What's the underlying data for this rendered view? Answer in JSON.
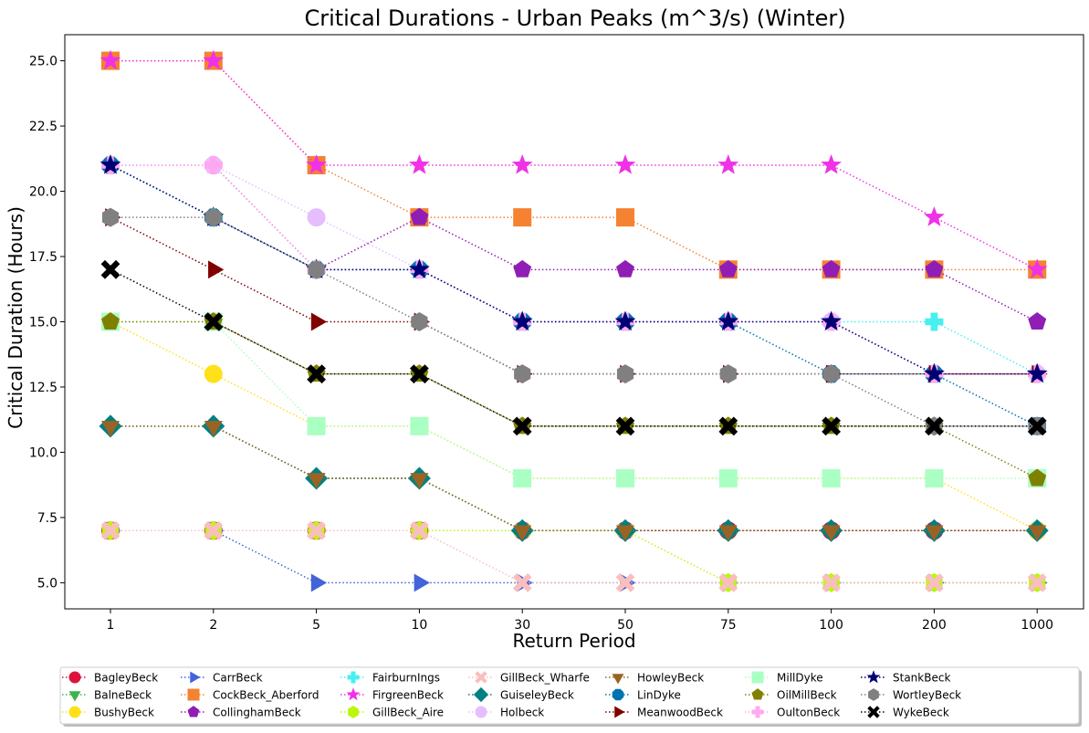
{
  "chart_data": {
    "type": "line",
    "title": "Critical Durations - Urban Peaks (m^3/s) (Winter)",
    "xlabel": "Return Period",
    "ylabel": "Critical Duration (Hours)",
    "categories": [
      "1",
      "2",
      "5",
      "10",
      "30",
      "50",
      "75",
      "100",
      "200",
      "1000"
    ],
    "ylim": [
      4.0,
      26.0
    ],
    "yticks": [
      "5.0",
      "7.5",
      "10.0",
      "12.5",
      "15.0",
      "17.5",
      "20.0",
      "22.5",
      "25.0"
    ],
    "grid": false,
    "legend_position": "below plot, 8 columns",
    "line_style": "dotted",
    "series": [
      {
        "name": "BagleyBeck",
        "color": "#dc143c",
        "marker": "circle",
        "values": [
          7,
          7,
          7,
          7,
          7,
          7,
          7,
          7,
          7,
          7
        ]
      },
      {
        "name": "BalneBeck",
        "color": "#3cb44b",
        "marker": "triangle-down",
        "values": [
          11,
          11,
          9,
          9,
          7,
          7,
          7,
          7,
          7,
          7
        ]
      },
      {
        "name": "BushyBeck",
        "color": "#ffe119",
        "marker": "circle",
        "values": [
          15,
          13,
          11,
          11,
          9,
          9,
          9,
          9,
          9,
          7
        ]
      },
      {
        "name": "CarrBeck",
        "color": "#4363d8",
        "marker": "triangle-right",
        "values": [
          7,
          7,
          5,
          5,
          5,
          5,
          5,
          5,
          5,
          5
        ]
      },
      {
        "name": "CockBeck_Aberford",
        "color": "#f58231",
        "marker": "square",
        "values": [
          25,
          25,
          21,
          19,
          19,
          19,
          17,
          17,
          17,
          17
        ]
      },
      {
        "name": "CollinghamBeck",
        "color": "#911eb4",
        "marker": "pentagon",
        "values": [
          21,
          21,
          17,
          19,
          17,
          17,
          17,
          17,
          17,
          15
        ]
      },
      {
        "name": "FairburnIngs",
        "color": "#46f0f0",
        "marker": "plus",
        "values": [
          21,
          19,
          17,
          17,
          15,
          15,
          15,
          15,
          15,
          13
        ]
      },
      {
        "name": "FirgreenBeck",
        "color": "#f032e6",
        "marker": "star",
        "values": [
          25,
          25,
          21,
          21,
          21,
          21,
          21,
          21,
          19,
          17
        ]
      },
      {
        "name": "GillBeck_Aire",
        "color": "#bcf60c",
        "marker": "hexagon",
        "values": [
          7,
          7,
          7,
          7,
          7,
          7,
          5,
          5,
          5,
          5
        ]
      },
      {
        "name": "GillBeck_Wharfe",
        "color": "#fabebe",
        "marker": "x",
        "values": [
          7,
          7,
          7,
          7,
          5,
          5,
          5,
          5,
          5,
          5
        ]
      },
      {
        "name": "GuiseleyBeck",
        "color": "#008080",
        "marker": "diamond",
        "values": [
          11,
          11,
          9,
          9,
          7,
          7,
          7,
          7,
          7,
          7
        ]
      },
      {
        "name": "Holbeck",
        "color": "#e6beff",
        "marker": "circle",
        "values": [
          21,
          21,
          19,
          17,
          15,
          15,
          15,
          15,
          13,
          13
        ]
      },
      {
        "name": "HowleyBeck",
        "color": "#9a6324",
        "marker": "triangle-down",
        "values": [
          11,
          11,
          9,
          9,
          7,
          7,
          7,
          7,
          7,
          7
        ]
      },
      {
        "name": "LinDyke",
        "color": "#0072b2",
        "marker": "octagon",
        "values": [
          21,
          19,
          17,
          17,
          15,
          15,
          15,
          13,
          13,
          11
        ]
      },
      {
        "name": "MeanwoodBeck",
        "color": "#800000",
        "marker": "triangle-right",
        "values": [
          19,
          17,
          15,
          15,
          13,
          13,
          13,
          13,
          13,
          13
        ]
      },
      {
        "name": "MillDyke",
        "color": "#aaffc3",
        "marker": "square",
        "values": [
          15,
          15,
          11,
          11,
          9,
          9,
          9,
          9,
          9,
          9
        ]
      },
      {
        "name": "OilMillBeck",
        "color": "#808000",
        "marker": "pentagon",
        "values": [
          15,
          15,
          13,
          13,
          11,
          11,
          11,
          11,
          11,
          9
        ]
      },
      {
        "name": "OultonBeck",
        "color": "#ffa8f0",
        "marker": "plus",
        "values": [
          21,
          21,
          17,
          17,
          15,
          15,
          15,
          15,
          13,
          13
        ]
      },
      {
        "name": "StankBeck",
        "color": "#000075",
        "marker": "star",
        "values": [
          21,
          19,
          17,
          17,
          15,
          15,
          15,
          15,
          13,
          13
        ]
      },
      {
        "name": "WortleyBeck",
        "color": "#808080",
        "marker": "hexagon",
        "values": [
          19,
          19,
          17,
          15,
          13,
          13,
          13,
          13,
          11,
          11
        ]
      },
      {
        "name": "WykeBeck",
        "color": "#000000",
        "marker": "x",
        "values": [
          17,
          15,
          13,
          13,
          11,
          11,
          11,
          11,
          11,
          11
        ]
      }
    ]
  }
}
